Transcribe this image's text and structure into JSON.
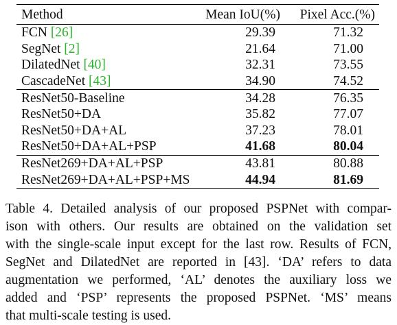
{
  "table": {
    "headers": [
      "Method",
      "Mean IoU(%)",
      "Pixel Acc.(%)"
    ],
    "groups": [
      [
        {
          "name": "FCN ",
          "ref": "[26]",
          "miou": "29.39",
          "pacc": "71.32",
          "bold": false
        },
        {
          "name": "SegNet ",
          "ref": "[2]",
          "miou": "21.64",
          "pacc": "71.00",
          "bold": false
        },
        {
          "name": "DilatedNet ",
          "ref": "[40]",
          "miou": "32.31",
          "pacc": "73.55",
          "bold": false
        },
        {
          "name": "CascadeNet ",
          "ref": "[43]",
          "miou": "34.90",
          "pacc": "74.52",
          "bold": false
        }
      ],
      [
        {
          "name": "ResNet50-Baseline",
          "ref": "",
          "miou": "34.28",
          "pacc": "76.35",
          "bold": false
        },
        {
          "name": "ResNet50+DA",
          "ref": "",
          "miou": "35.82",
          "pacc": "77.07",
          "bold": false
        },
        {
          "name": "ResNet50+DA+AL",
          "ref": "",
          "miou": "37.23",
          "pacc": "78.01",
          "bold": false
        },
        {
          "name": "ResNet50+DA+AL+PSP",
          "ref": "",
          "miou": "41.68",
          "pacc": "80.04",
          "bold": true
        }
      ],
      [
        {
          "name": "ResNet269+DA+AL+PSP",
          "ref": "",
          "miou": "43.81",
          "pacc": "80.88",
          "bold": false
        },
        {
          "name": "ResNet269+DA+AL+PSP+MS",
          "ref": "",
          "miou": "44.94",
          "pacc": "81.69",
          "bold": true
        }
      ]
    ]
  },
  "caption": {
    "lines": [
      "Table 4. Detailed analysis of our proposed PSPNet with compar-",
      "ison with others.  Our results are obtained on the validation set",
      "with the single-scale input except for the last row. Results of FCN,",
      "SegNet and DilatedNet are reported in [43].  ‘DA’ refers to data",
      "augmentation we performed, ‘AL’ denotes the auxiliary loss we",
      "added and ‘PSP’ represents the proposed PSPNet.  ‘MS’ means",
      "that multi-scale testing is used."
    ]
  }
}
